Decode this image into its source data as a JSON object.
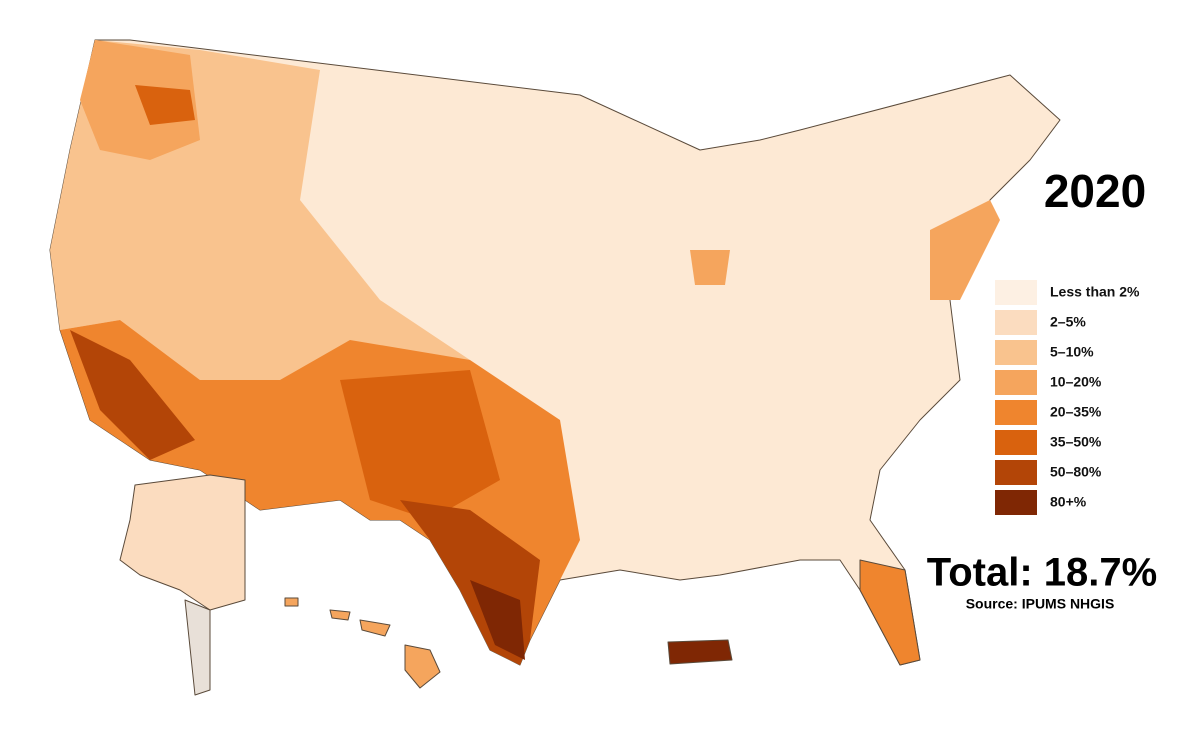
{
  "title": "2020",
  "legend": {
    "items": [
      {
        "label": "Less than 2%",
        "color": "#fdf0e3"
      },
      {
        "label": "2–5%",
        "color": "#fbdcbf"
      },
      {
        "label": "5–10%",
        "color": "#f9c38e"
      },
      {
        "label": "10–20%",
        "color": "#f5a55d"
      },
      {
        "label": "20–35%",
        "color": "#ef852e"
      },
      {
        "label": "35–50%",
        "color": "#d9620e"
      },
      {
        "label": "50–80%",
        "color": "#b34507"
      },
      {
        "label": "80+%",
        "color": "#7f2704"
      }
    ]
  },
  "total": "Total: 18.7%",
  "source": "Source: IPUMS NHGIS"
}
